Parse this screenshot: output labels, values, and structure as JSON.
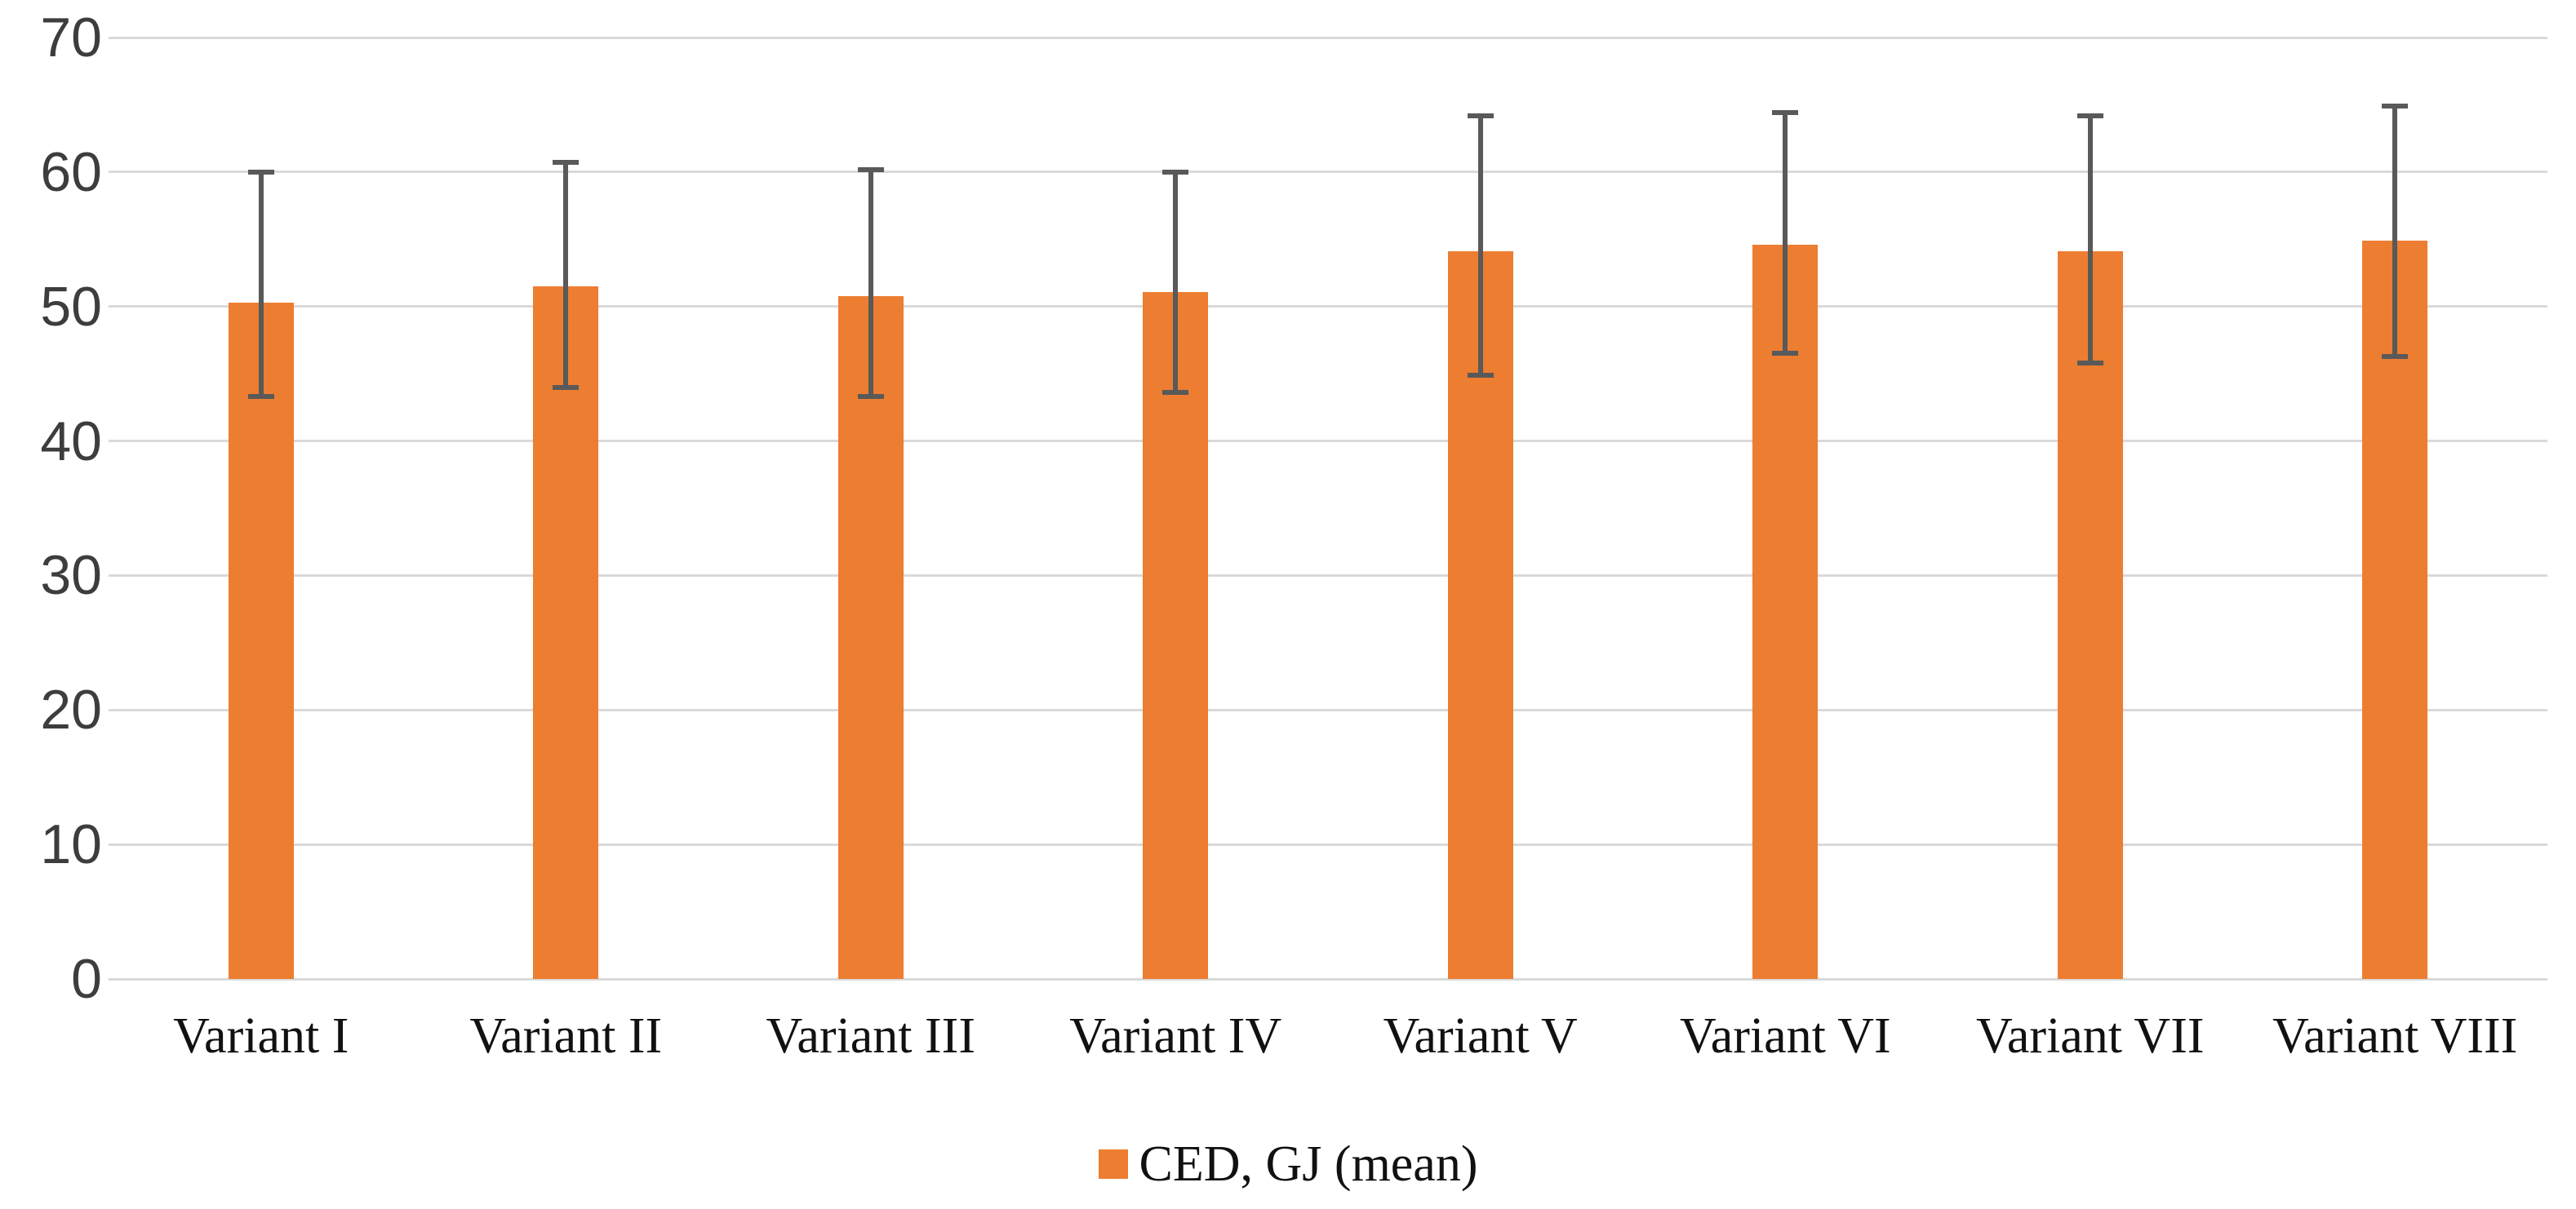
{
  "chart_data": {
    "type": "bar",
    "title": "",
    "xlabel": "",
    "ylabel": "",
    "categories": [
      "Variant I",
      "Variant II",
      "Variant III",
      "Variant IV",
      "Variant V",
      "Variant VI",
      "Variant VII",
      "Variant VIII"
    ],
    "series": [
      {
        "name": "CED, GJ (mean)",
        "values": [
          50.3,
          51.5,
          50.8,
          51.1,
          54.1,
          54.6,
          54.1,
          54.9
        ],
        "error_up_to": [
          60.0,
          60.7,
          60.2,
          60.0,
          64.2,
          64.4,
          64.2,
          64.9
        ],
        "error_down_to": [
          43.3,
          44.0,
          43.3,
          43.6,
          44.9,
          46.5,
          45.8,
          46.3
        ]
      }
    ],
    "legend_label": "CED, GJ (mean)",
    "legend_position": "bottom",
    "ylim": [
      0,
      70
    ],
    "yticks": [
      0,
      10,
      20,
      30,
      40,
      50,
      60,
      70
    ],
    "grid": true,
    "colors": {
      "bar": "#ED7D31",
      "error_bar": "#595959",
      "gridline": "#D9D9D9",
      "tick_label": "#3D3D3D",
      "category_label": "#111111",
      "background": "#FFFFFF"
    }
  }
}
